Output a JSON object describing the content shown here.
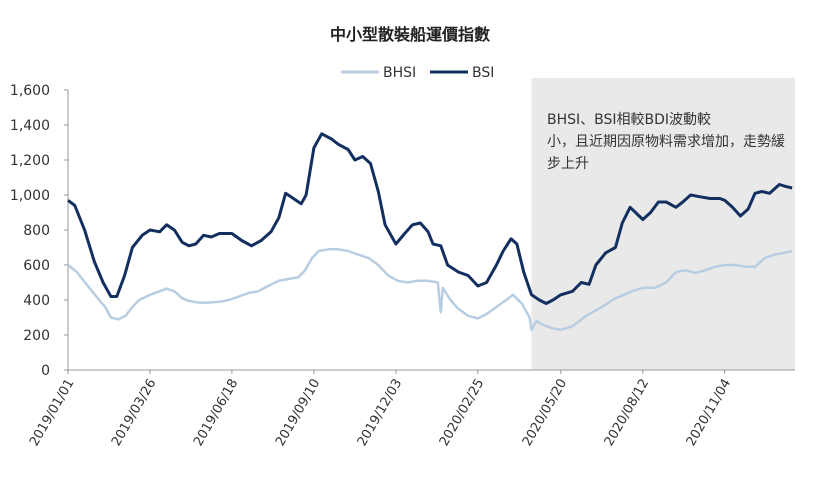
{
  "colors": {
    "bhsi": "#b8cde2",
    "bsi": "#132f5f",
    "shade": "#e9e9e9",
    "axis": "#999999"
  },
  "chart_data": {
    "type": "line",
    "title": "中小型散裝船運價指數",
    "legend": [
      "BHSI",
      "BSI"
    ],
    "legend_position": "top-center",
    "grid": false,
    "ylim": [
      0,
      1600
    ],
    "yticks": [
      "0",
      "200",
      "400",
      "600",
      "800",
      "1,000",
      "1,200",
      "1,400",
      "1,600"
    ],
    "xlim": [
      "2019-01-01",
      "2021-01-15"
    ],
    "xticks": [
      "2019/01/01",
      "2019/03/26",
      "2019/06/18",
      "2019/09/10",
      "2019/12/03",
      "2020/02/25",
      "2020/05/20",
      "2020/08/12",
      "2020/11/04"
    ],
    "shaded_range": [
      "2020-04-20",
      "2021-01-15"
    ],
    "annotation": "BHSI、BSI相較BDI波動較小，且近期因原物料需求增加，走勢緩步上升",
    "series": [
      {
        "name": "BHSI",
        "points": [
          [
            "2019-01-01",
            600
          ],
          [
            "2019-01-10",
            560
          ],
          [
            "2019-01-20",
            490
          ],
          [
            "2019-01-30",
            420
          ],
          [
            "2019-02-08",
            360
          ],
          [
            "2019-02-14",
            300
          ],
          [
            "2019-02-22",
            290
          ],
          [
            "2019-03-01",
            310
          ],
          [
            "2019-03-08",
            360
          ],
          [
            "2019-03-15",
            400
          ],
          [
            "2019-03-26",
            430
          ],
          [
            "2019-04-05",
            450
          ],
          [
            "2019-04-12",
            465
          ],
          [
            "2019-04-20",
            450
          ],
          [
            "2019-04-28",
            410
          ],
          [
            "2019-05-05",
            395
          ],
          [
            "2019-05-15",
            385
          ],
          [
            "2019-05-25",
            385
          ],
          [
            "2019-06-05",
            390
          ],
          [
            "2019-06-15",
            400
          ],
          [
            "2019-06-25",
            420
          ],
          [
            "2019-07-05",
            440
          ],
          [
            "2019-07-15",
            450
          ],
          [
            "2019-07-25",
            480
          ],
          [
            "2019-08-05",
            510
          ],
          [
            "2019-08-15",
            520
          ],
          [
            "2019-08-25",
            530
          ],
          [
            "2019-09-01",
            570
          ],
          [
            "2019-09-08",
            640
          ],
          [
            "2019-09-15",
            680
          ],
          [
            "2019-09-25",
            690
          ],
          [
            "2019-10-05",
            690
          ],
          [
            "2019-10-15",
            680
          ],
          [
            "2019-10-25",
            660
          ],
          [
            "2019-11-05",
            640
          ],
          [
            "2019-11-15",
            600
          ],
          [
            "2019-11-25",
            540
          ],
          [
            "2019-12-05",
            510
          ],
          [
            "2019-12-15",
            500
          ],
          [
            "2019-12-25",
            510
          ],
          [
            "2020-01-05",
            510
          ],
          [
            "2020-01-15",
            500
          ],
          [
            "2020-01-18",
            330
          ],
          [
            "2020-01-20",
            470
          ],
          [
            "2020-01-28",
            400
          ],
          [
            "2020-02-05",
            350
          ],
          [
            "2020-02-15",
            310
          ],
          [
            "2020-02-25",
            295
          ],
          [
            "2020-03-05",
            320
          ],
          [
            "2020-03-15",
            360
          ],
          [
            "2020-03-25",
            400
          ],
          [
            "2020-04-01",
            430
          ],
          [
            "2020-04-10",
            380
          ],
          [
            "2020-04-18",
            300
          ],
          [
            "2020-04-20",
            230
          ],
          [
            "2020-04-25",
            280
          ],
          [
            "2020-05-01",
            260
          ],
          [
            "2020-05-10",
            240
          ],
          [
            "2020-05-20",
            230
          ],
          [
            "2020-06-01",
            250
          ],
          [
            "2020-06-15",
            310
          ],
          [
            "2020-07-01",
            360
          ],
          [
            "2020-07-15",
            410
          ],
          [
            "2020-08-01",
            450
          ],
          [
            "2020-08-12",
            470
          ],
          [
            "2020-08-25",
            470
          ],
          [
            "2020-09-05",
            500
          ],
          [
            "2020-09-15",
            560
          ],
          [
            "2020-09-25",
            570
          ],
          [
            "2020-10-05",
            555
          ],
          [
            "2020-10-15",
            570
          ],
          [
            "2020-10-25",
            590
          ],
          [
            "2020-11-04",
            600
          ],
          [
            "2020-11-15",
            600
          ],
          [
            "2020-11-25",
            590
          ],
          [
            "2020-12-05",
            590
          ],
          [
            "2020-12-15",
            640
          ],
          [
            "2020-12-25",
            660
          ],
          [
            "2021-01-05",
            670
          ],
          [
            "2021-01-12",
            680
          ]
        ]
      },
      {
        "name": "BSI",
        "points": [
          [
            "2019-01-01",
            970
          ],
          [
            "2019-01-08",
            940
          ],
          [
            "2019-01-18",
            800
          ],
          [
            "2019-01-28",
            620
          ],
          [
            "2019-02-06",
            500
          ],
          [
            "2019-02-14",
            420
          ],
          [
            "2019-02-20",
            420
          ],
          [
            "2019-02-28",
            540
          ],
          [
            "2019-03-08",
            700
          ],
          [
            "2019-03-18",
            770
          ],
          [
            "2019-03-26",
            800
          ],
          [
            "2019-04-05",
            790
          ],
          [
            "2019-04-12",
            830
          ],
          [
            "2019-04-20",
            800
          ],
          [
            "2019-04-28",
            730
          ],
          [
            "2019-05-05",
            710
          ],
          [
            "2019-05-12",
            720
          ],
          [
            "2019-05-20",
            770
          ],
          [
            "2019-05-28",
            760
          ],
          [
            "2019-06-05",
            780
          ],
          [
            "2019-06-18",
            780
          ],
          [
            "2019-06-28",
            740
          ],
          [
            "2019-07-08",
            710
          ],
          [
            "2019-07-18",
            740
          ],
          [
            "2019-07-28",
            790
          ],
          [
            "2019-08-05",
            870
          ],
          [
            "2019-08-12",
            1010
          ],
          [
            "2019-08-20",
            980
          ],
          [
            "2019-08-28",
            950
          ],
          [
            "2019-09-02",
            1000
          ],
          [
            "2019-09-10",
            1270
          ],
          [
            "2019-09-18",
            1350
          ],
          [
            "2019-09-28",
            1320
          ],
          [
            "2019-10-05",
            1290
          ],
          [
            "2019-10-15",
            1260
          ],
          [
            "2019-10-22",
            1200
          ],
          [
            "2019-10-30",
            1220
          ],
          [
            "2019-11-07",
            1180
          ],
          [
            "2019-11-15",
            1020
          ],
          [
            "2019-11-22",
            830
          ],
          [
            "2019-12-03",
            720
          ],
          [
            "2019-12-12",
            780
          ],
          [
            "2019-12-20",
            830
          ],
          [
            "2019-12-28",
            840
          ],
          [
            "2020-01-05",
            790
          ],
          [
            "2020-01-10",
            720
          ],
          [
            "2020-01-18",
            710
          ],
          [
            "2020-01-25",
            600
          ],
          [
            "2020-02-05",
            560
          ],
          [
            "2020-02-15",
            540
          ],
          [
            "2020-02-25",
            480
          ],
          [
            "2020-03-05",
            500
          ],
          [
            "2020-03-15",
            600
          ],
          [
            "2020-03-22",
            680
          ],
          [
            "2020-03-30",
            750
          ],
          [
            "2020-04-05",
            720
          ],
          [
            "2020-04-12",
            560
          ],
          [
            "2020-04-20",
            430
          ],
          [
            "2020-04-28",
            400
          ],
          [
            "2020-05-05",
            380
          ],
          [
            "2020-05-12",
            400
          ],
          [
            "2020-05-20",
            430
          ],
          [
            "2020-06-01",
            450
          ],
          [
            "2020-06-10",
            500
          ],
          [
            "2020-06-18",
            490
          ],
          [
            "2020-06-25",
            600
          ],
          [
            "2020-07-05",
            670
          ],
          [
            "2020-07-15",
            700
          ],
          [
            "2020-07-22",
            840
          ],
          [
            "2020-07-30",
            930
          ],
          [
            "2020-08-12",
            860
          ],
          [
            "2020-08-20",
            900
          ],
          [
            "2020-08-28",
            960
          ],
          [
            "2020-09-05",
            960
          ],
          [
            "2020-09-15",
            930
          ],
          [
            "2020-09-22",
            960
          ],
          [
            "2020-09-30",
            1000
          ],
          [
            "2020-10-10",
            990
          ],
          [
            "2020-10-20",
            980
          ],
          [
            "2020-10-30",
            980
          ],
          [
            "2020-11-04",
            970
          ],
          [
            "2020-11-12",
            930
          ],
          [
            "2020-11-20",
            880
          ],
          [
            "2020-11-28",
            920
          ],
          [
            "2020-12-05",
            1010
          ],
          [
            "2020-12-12",
            1020
          ],
          [
            "2020-12-20",
            1010
          ],
          [
            "2020-12-30",
            1060
          ],
          [
            "2021-01-05",
            1050
          ],
          [
            "2021-01-12",
            1040
          ]
        ]
      }
    ]
  }
}
